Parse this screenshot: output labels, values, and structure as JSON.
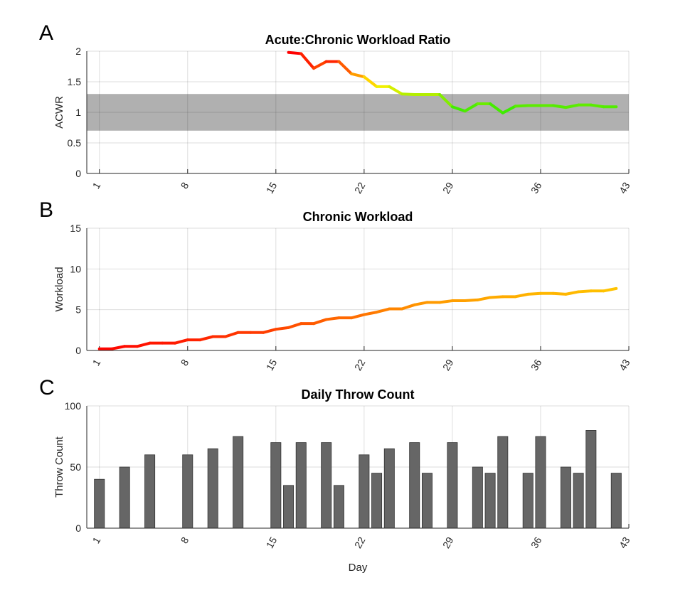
{
  "chart_data": [
    {
      "panel": "A",
      "type": "line",
      "title": "Acute:Chronic Workload Ratio",
      "xlabel": "",
      "ylabel": "ACWR",
      "xlim": [
        0,
        43
      ],
      "ylim": [
        0,
        2
      ],
      "yticks": [
        "0",
        "0.5",
        "1",
        "1.5",
        "2"
      ],
      "xticks": [
        "1",
        "8",
        "15",
        "22",
        "29",
        "36",
        "43"
      ],
      "band": [
        0.7,
        1.3
      ],
      "grid": true,
      "x": [
        16,
        17,
        18,
        19,
        20,
        21,
        22,
        23,
        24,
        25,
        26,
        27,
        28,
        29,
        30,
        31,
        32,
        33,
        34,
        35,
        36,
        37,
        38,
        39,
        40,
        41,
        42
      ],
      "y": [
        1.98,
        1.96,
        1.72,
        1.83,
        1.83,
        1.63,
        1.58,
        1.42,
        1.42,
        1.3,
        1.29,
        1.29,
        1.29,
        1.09,
        1.02,
        1.14,
        1.14,
        0.99,
        1.1,
        1.11,
        1.11,
        1.11,
        1.08,
        1.12,
        1.12,
        1.09,
        1.09
      ],
      "colormap": "green-yellow-red"
    },
    {
      "panel": "B",
      "type": "line",
      "title": "Chronic Workload",
      "xlabel": "",
      "ylabel": "Workload",
      "xlim": [
        0,
        43
      ],
      "ylim": [
        0,
        15
      ],
      "yticks": [
        "0",
        "5",
        "10",
        "15"
      ],
      "xticks": [
        "1",
        "8",
        "15",
        "22",
        "29",
        "36",
        "43"
      ],
      "grid": true,
      "x": [
        1,
        2,
        3,
        4,
        5,
        6,
        7,
        8,
        9,
        10,
        11,
        12,
        13,
        14,
        15,
        16,
        17,
        18,
        19,
        20,
        21,
        22,
        23,
        24,
        25,
        26,
        27,
        28,
        29,
        30,
        31,
        32,
        33,
        34,
        35,
        36,
        37,
        38,
        39,
        40,
        41,
        42
      ],
      "y": [
        0.2,
        0.2,
        0.5,
        0.5,
        0.9,
        0.9,
        0.9,
        1.3,
        1.3,
        1.7,
        1.7,
        2.2,
        2.2,
        2.2,
        2.6,
        2.8,
        3.3,
        3.3,
        3.8,
        4.0,
        4.0,
        4.4,
        4.7,
        5.1,
        5.1,
        5.6,
        5.9,
        5.9,
        6.1,
        6.1,
        6.2,
        6.5,
        6.6,
        6.6,
        6.9,
        7.0,
        7.0,
        6.9,
        7.2,
        7.3,
        7.3,
        7.6
      ],
      "colormap": "red-yellow"
    },
    {
      "panel": "C",
      "type": "bar",
      "title": "Daily Throw Count",
      "xlabel": "Day",
      "ylabel": "Throw Count",
      "xlim": [
        0,
        43
      ],
      "ylim": [
        0,
        100
      ],
      "yticks": [
        "0",
        "50",
        "100"
      ],
      "xticks": [
        "1",
        "8",
        "15",
        "22",
        "29",
        "36",
        "43"
      ],
      "grid": true,
      "x": [
        1,
        3,
        5,
        8,
        10,
        12,
        15,
        16,
        17,
        19,
        20,
        22,
        23,
        24,
        26,
        27,
        29,
        31,
        32,
        33,
        35,
        36,
        38,
        39,
        40,
        42
      ],
      "y": [
        40,
        50,
        60,
        60,
        65,
        75,
        70,
        35,
        70,
        70,
        35,
        60,
        45,
        65,
        70,
        45,
        70,
        50,
        45,
        75,
        45,
        75,
        50,
        45,
        80,
        45
      ],
      "bar_color": "#666666"
    }
  ]
}
